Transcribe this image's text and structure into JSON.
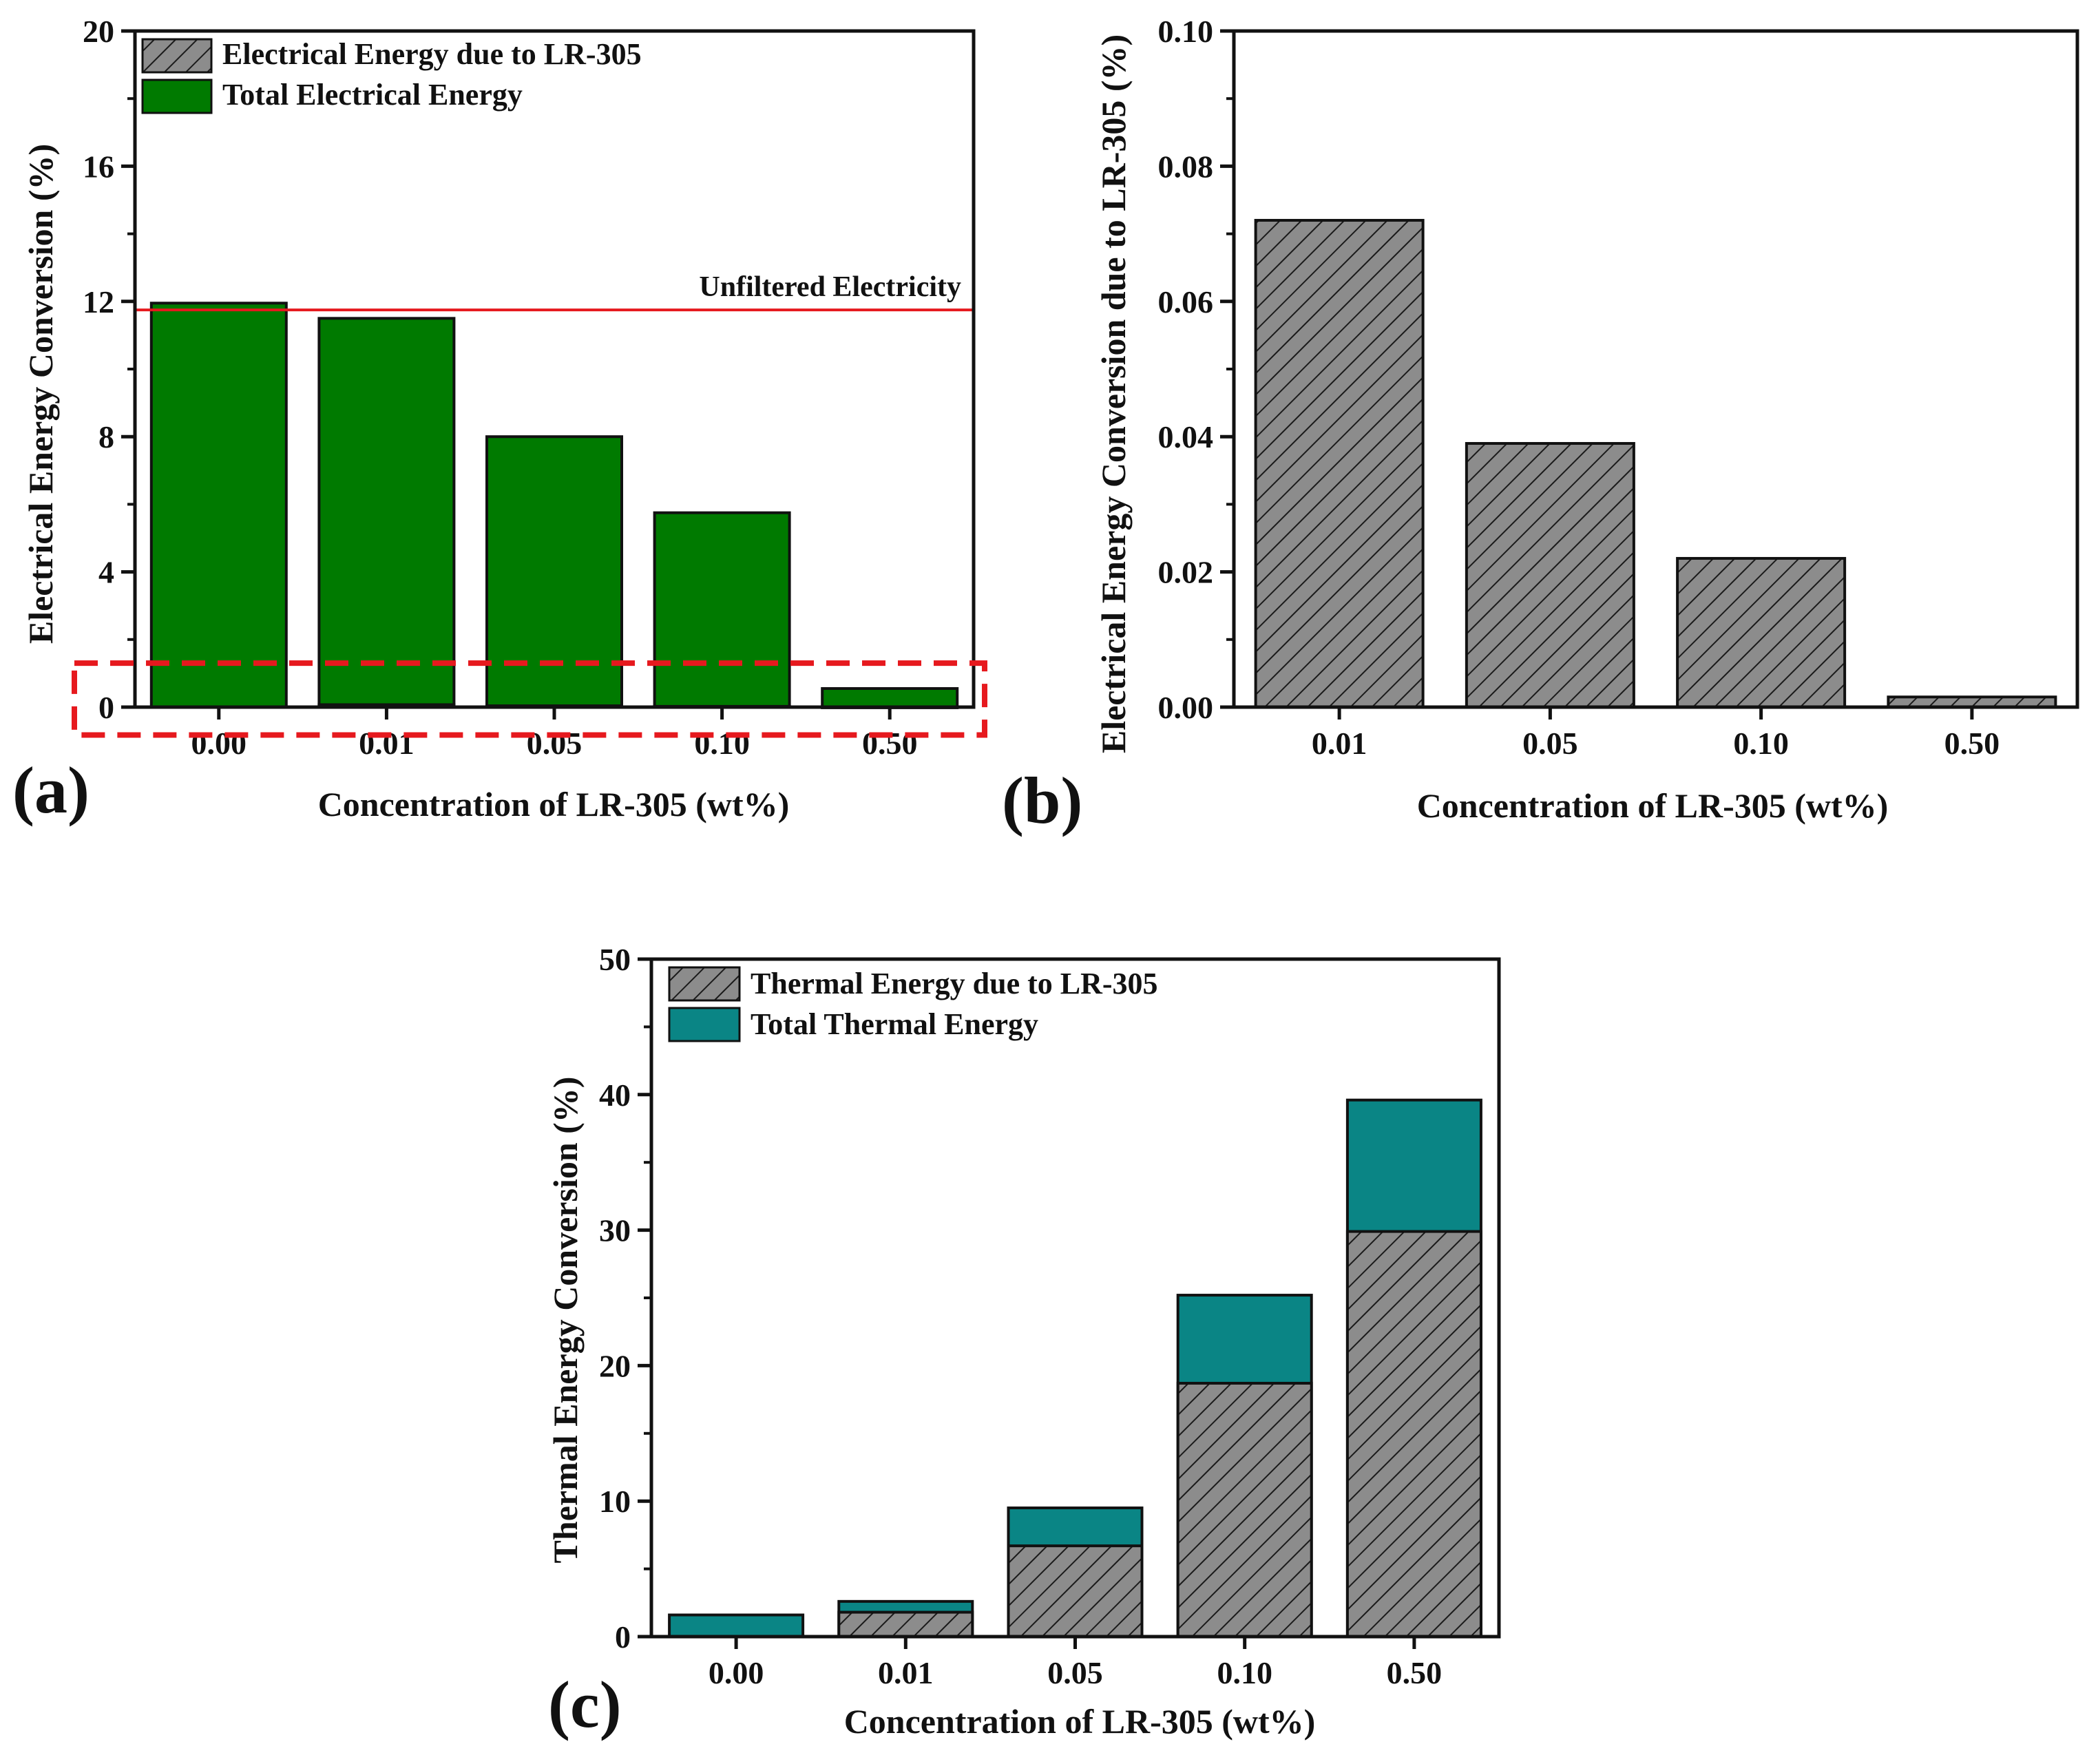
{
  "colors": {
    "hatch_gray": "#8c8c8c",
    "green": "#007a00",
    "teal": "#0a8585",
    "red": "#e6191e",
    "axis": "#111111"
  },
  "chart_data": [
    {
      "panel": "(a)",
      "type": "bar",
      "overlay": true,
      "categories": [
        "0.00",
        "0.01",
        "0.05",
        "0.10",
        "0.50"
      ],
      "series": [
        {
          "name": "Total Electrical Energy",
          "pattern": "solid-green",
          "values": [
            11.95,
            11.5,
            8.0,
            5.75,
            0.55
          ]
        },
        {
          "name": "Electrical Energy due to LR-305",
          "pattern": "hatched-gray",
          "values": [
            0,
            0.072,
            0.039,
            0.022,
            0.0015
          ]
        }
      ],
      "ylim": [
        0,
        20
      ],
      "yticks": [
        "0",
        "4",
        "8",
        "12",
        "16",
        "20"
      ],
      "xlabel": "Concentration of LR-305 (wt%)",
      "ylabel": "Electrical Energy Conversion (%)",
      "reference_line": {
        "label": "Unfiltered Electricity",
        "value": 11.75
      },
      "highlight_box": {
        "ymin": -0.5,
        "ymax": 1.3,
        "style": "red dashed"
      },
      "legend": [
        "Electrical Energy due to LR-305",
        "Total Electrical Energy"
      ],
      "legend_position": "top-left"
    },
    {
      "panel": "(b)",
      "type": "bar",
      "categories": [
        "0.01",
        "0.05",
        "0.10",
        "0.50"
      ],
      "series": [
        {
          "name": "Electrical Energy due to LR-305",
          "pattern": "hatched-gray",
          "values": [
            0.072,
            0.039,
            0.022,
            0.0015
          ]
        }
      ],
      "ylim": [
        0,
        0.1
      ],
      "yticks": [
        "0.00",
        "0.02",
        "0.04",
        "0.06",
        "0.08",
        "0.10"
      ],
      "xlabel": "Concentration of LR-305 (wt%)",
      "ylabel": "Electrical Energy Conversion due to LR-305 (%)"
    },
    {
      "panel": "(c)",
      "type": "bar",
      "overlay": true,
      "categories": [
        "0.00",
        "0.01",
        "0.05",
        "0.10",
        "0.50"
      ],
      "series": [
        {
          "name": "Total Thermal Energy",
          "pattern": "solid-teal",
          "values": [
            1.6,
            2.6,
            9.5,
            25.2,
            39.6
          ]
        },
        {
          "name": "Thermal Energy due to LR-305",
          "pattern": "hatched-gray",
          "values": [
            0,
            1.8,
            6.7,
            18.7,
            29.9
          ]
        }
      ],
      "ylim": [
        0,
        50
      ],
      "yticks": [
        "0",
        "10",
        "20",
        "30",
        "40",
        "50"
      ],
      "xlabel": "Concentration of LR-305 (wt%)",
      "ylabel": "Thermal Energy Conversion (%)",
      "legend": [
        "Thermal Energy due to LR-305",
        "Total Thermal Energy"
      ],
      "legend_position": "top-left"
    }
  ]
}
